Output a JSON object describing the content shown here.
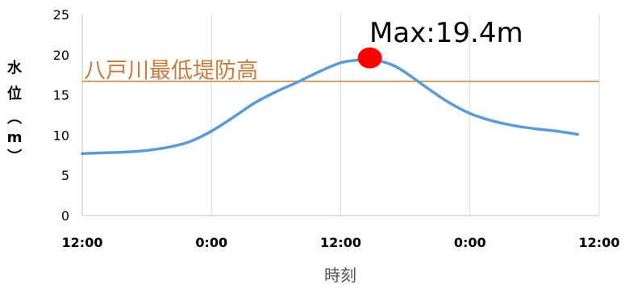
{
  "chart_data": {
    "type": "line",
    "xlabel": "時刻",
    "ylabel": "水位（m）",
    "ylabel_chars": [
      "水",
      "位",
      "（",
      "m",
      "）"
    ],
    "ylim": [
      0,
      25
    ],
    "yticks": [
      0,
      5,
      10,
      15,
      20,
      25
    ],
    "xlim": [
      0,
      48
    ],
    "xticks": [
      {
        "x": 0,
        "label": "12:00"
      },
      {
        "x": 12,
        "label": "0:00"
      },
      {
        "x": 24,
        "label": "12:00"
      },
      {
        "x": 36,
        "label": "0:00"
      },
      {
        "x": 48,
        "label": "12:00"
      }
    ],
    "grid": {
      "vertical": true,
      "horizontal": false
    },
    "series": [
      {
        "color": "#5b9bd5",
        "x": [
          0,
          2,
          4,
          6,
          8,
          10,
          12,
          14,
          16,
          18,
          20,
          22,
          24,
          26,
          27,
          28,
          29,
          30,
          32,
          34,
          36,
          38,
          40,
          42,
          44,
          46
        ],
        "y": [
          7.7,
          7.8,
          7.9,
          8.1,
          8.5,
          9.2,
          10.5,
          12.2,
          14.0,
          15.4,
          16.6,
          17.9,
          19.0,
          19.4,
          19.4,
          19.1,
          18.6,
          17.8,
          15.9,
          14.1,
          12.7,
          11.8,
          11.2,
          10.8,
          10.5,
          10.1
        ]
      }
    ],
    "reference_line": {
      "y": 16.7,
      "label": "八戸川最低堤防高",
      "color": "#c97b3c"
    },
    "max_marker": {
      "x": 27,
      "y": 19.4,
      "label": "Max:19.4m",
      "color": "#ff0000"
    }
  }
}
